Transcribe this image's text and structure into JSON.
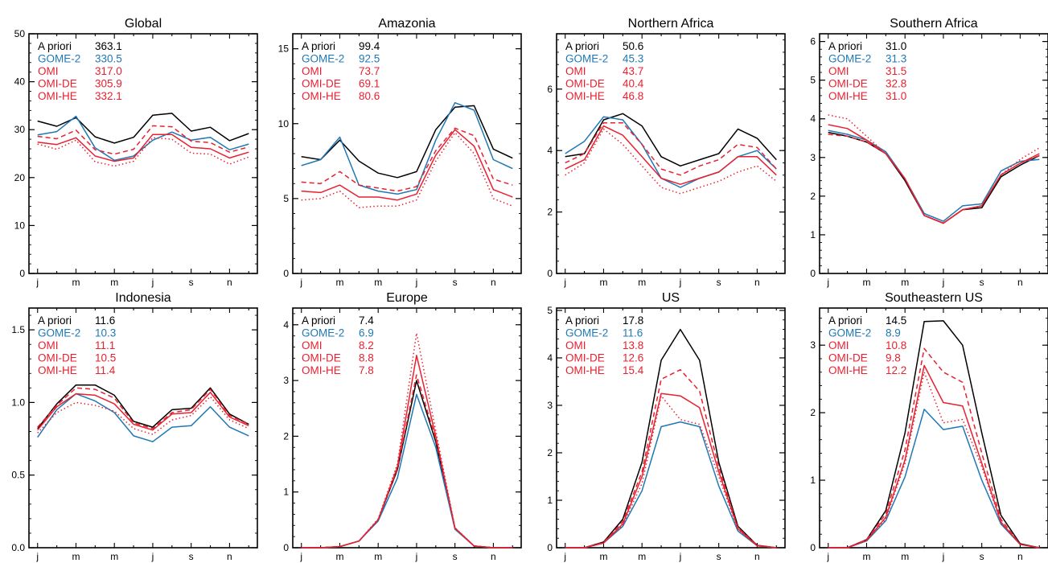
{
  "colors": {
    "a_priori": "#000000",
    "gome2": "#1f78b4",
    "omi": "#e8202f",
    "axis": "#000000"
  },
  "legend_labels": [
    "A priori",
    "GOME-2",
    "OMI",
    "OMI-DE",
    "OMI-HE"
  ],
  "month_ticks": [
    "j",
    "m",
    "m",
    "j",
    "s",
    "n"
  ],
  "chart_data": [
    {
      "type": "line",
      "title": "Global",
      "ylim": [
        0,
        50
      ],
      "yticks": [
        0,
        10,
        20,
        30,
        40,
        50
      ],
      "ytick_labels": [
        "0",
        "10",
        "20",
        "30",
        "40",
        "50"
      ],
      "x": [
        1,
        2,
        3,
        4,
        5,
        6,
        7,
        8,
        9,
        10,
        11,
        12
      ],
      "legend_values": [
        "363.1",
        "330.5",
        "317.0",
        "305.9",
        "332.1"
      ],
      "series": [
        {
          "name": "A priori",
          "style": "solid",
          "color": "#000000",
          "values": [
            31.8,
            30.7,
            32.5,
            28.5,
            27.2,
            28.4,
            33.0,
            33.4,
            29.7,
            30.5,
            27.7,
            29.2
          ]
        },
        {
          "name": "GOME-2",
          "style": "solid",
          "color": "#1f78b4",
          "values": [
            28.9,
            29.6,
            32.8,
            26.2,
            23.6,
            24.5,
            27.8,
            29.5,
            27.8,
            28.4,
            25.8,
            27.0
          ]
        },
        {
          "name": "OMI",
          "style": "solid",
          "color": "#e8202f",
          "values": [
            27.4,
            26.9,
            28.3,
            24.5,
            23.4,
            24.1,
            29.0,
            29.0,
            26.3,
            26.0,
            24.1,
            25.3
          ]
        },
        {
          "name": "OMI-DE",
          "style": "dotted",
          "color": "#e8202f",
          "values": [
            27.0,
            25.9,
            27.8,
            23.3,
            22.4,
            23.4,
            28.3,
            28.0,
            25.1,
            24.9,
            22.8,
            24.3
          ]
        },
        {
          "name": "OMI-HE",
          "style": "dashed",
          "color": "#e8202f",
          "values": [
            28.6,
            28.1,
            29.9,
            25.8,
            24.9,
            25.9,
            30.8,
            30.6,
            27.6,
            27.3,
            25.3,
            26.4
          ]
        }
      ]
    },
    {
      "type": "line",
      "title": "Amazonia",
      "ylim": [
        0,
        16
      ],
      "yticks": [
        0,
        5,
        10,
        15
      ],
      "ytick_labels": [
        "0",
        "5",
        "10",
        "15"
      ],
      "x": [
        1,
        2,
        3,
        4,
        5,
        6,
        7,
        8,
        9,
        10,
        11,
        12
      ],
      "legend_values": [
        "99.4",
        "92.5",
        "73.7",
        "69.1",
        "80.6"
      ],
      "series": [
        {
          "name": "A priori",
          "style": "solid",
          "color": "#000000",
          "values": [
            7.8,
            7.6,
            8.9,
            7.5,
            6.7,
            6.4,
            6.8,
            9.6,
            11.1,
            11.2,
            8.3,
            7.7
          ]
        },
        {
          "name": "GOME-2",
          "style": "solid",
          "color": "#1f78b4",
          "values": [
            7.2,
            7.6,
            9.1,
            5.9,
            5.5,
            5.3,
            5.6,
            8.9,
            11.4,
            10.9,
            7.6,
            7.0
          ]
        },
        {
          "name": "OMI",
          "style": "solid",
          "color": "#e8202f",
          "values": [
            5.5,
            5.4,
            5.9,
            5.1,
            5.1,
            4.9,
            5.3,
            7.9,
            9.6,
            8.5,
            5.6,
            5.1
          ]
        },
        {
          "name": "OMI-DE",
          "style": "dotted",
          "color": "#e8202f",
          "values": [
            4.9,
            5.0,
            5.5,
            4.4,
            4.5,
            4.5,
            4.9,
            7.5,
            9.4,
            8.0,
            5.0,
            4.5
          ]
        },
        {
          "name": "OMI-HE",
          "style": "dashed",
          "color": "#e8202f",
          "values": [
            6.1,
            6.0,
            6.8,
            5.9,
            5.7,
            5.5,
            5.8,
            8.2,
            9.7,
            9.2,
            6.3,
            5.9
          ]
        }
      ]
    },
    {
      "type": "line",
      "title": "Northern Africa",
      "ylim": [
        0,
        7.8
      ],
      "yticks": [
        0,
        2,
        4,
        6
      ],
      "ytick_labels": [
        "0",
        "2",
        "4",
        "6"
      ],
      "x": [
        1,
        2,
        3,
        4,
        5,
        6,
        7,
        8,
        9,
        10,
        11,
        12
      ],
      "legend_values": [
        "50.6",
        "45.3",
        "43.7",
        "40.4",
        "46.8"
      ],
      "series": [
        {
          "name": "A priori",
          "style": "solid",
          "color": "#000000",
          "values": [
            3.8,
            3.9,
            5.0,
            5.2,
            4.8,
            3.8,
            3.5,
            3.7,
            3.9,
            4.7,
            4.4,
            3.7
          ]
        },
        {
          "name": "GOME-2",
          "style": "solid",
          "color": "#1f78b4",
          "values": [
            3.9,
            4.3,
            5.1,
            5.0,
            4.2,
            3.1,
            2.8,
            3.1,
            3.3,
            3.8,
            4.0,
            3.4
          ]
        },
        {
          "name": "OMI",
          "style": "solid",
          "color": "#e8202f",
          "values": [
            3.4,
            3.7,
            4.8,
            4.5,
            3.8,
            3.1,
            2.9,
            3.1,
            3.3,
            3.8,
            3.8,
            3.2
          ]
        },
        {
          "name": "OMI-DE",
          "style": "dotted",
          "color": "#e8202f",
          "values": [
            3.2,
            3.6,
            4.7,
            4.2,
            3.5,
            2.8,
            2.6,
            2.8,
            3.0,
            3.3,
            3.5,
            3.0
          ]
        },
        {
          "name": "OMI-HE",
          "style": "dashed",
          "color": "#e8202f",
          "values": [
            3.6,
            3.9,
            4.9,
            4.9,
            4.2,
            3.4,
            3.2,
            3.5,
            3.7,
            4.2,
            4.1,
            3.4
          ]
        }
      ]
    },
    {
      "type": "line",
      "title": "Southern Africa",
      "ylim": [
        0,
        6.2
      ],
      "yticks": [
        0,
        1,
        2,
        3,
        4,
        5,
        6
      ],
      "ytick_labels": [
        "0",
        "1",
        "2",
        "3",
        "4",
        "5",
        "6"
      ],
      "x": [
        1,
        2,
        3,
        4,
        5,
        6,
        7,
        8,
        9,
        10,
        11,
        12
      ],
      "legend_values": [
        "31.0",
        "31.3",
        "31.5",
        "32.8",
        "31.0"
      ],
      "series": [
        {
          "name": "A priori",
          "style": "solid",
          "color": "#000000",
          "values": [
            3.65,
            3.55,
            3.4,
            3.1,
            2.4,
            1.5,
            1.3,
            1.65,
            1.7,
            2.5,
            2.8,
            3.05
          ]
        },
        {
          "name": "GOME-2",
          "style": "solid",
          "color": "#1f78b4",
          "values": [
            3.7,
            3.6,
            3.45,
            3.15,
            2.45,
            1.55,
            1.35,
            1.75,
            1.8,
            2.65,
            2.9,
            2.95
          ]
        },
        {
          "name": "OMI",
          "style": "solid",
          "color": "#e8202f",
          "values": [
            3.85,
            3.75,
            3.45,
            3.1,
            2.45,
            1.5,
            1.3,
            1.65,
            1.75,
            2.55,
            2.85,
            3.1
          ]
        },
        {
          "name": "OMI-DE",
          "style": "dotted",
          "color": "#e8202f",
          "values": [
            4.1,
            4.0,
            3.55,
            3.1,
            2.45,
            1.5,
            1.3,
            1.65,
            1.75,
            2.55,
            2.95,
            3.25
          ]
        },
        {
          "name": "OMI-HE",
          "style": "dashed",
          "color": "#e8202f",
          "values": [
            3.6,
            3.55,
            3.4,
            3.1,
            2.45,
            1.5,
            1.3,
            1.65,
            1.75,
            2.55,
            2.85,
            3.05
          ]
        }
      ]
    },
    {
      "type": "line",
      "title": "Indonesia",
      "ylim": [
        0,
        1.65
      ],
      "yticks": [
        0,
        0.5,
        1.0,
        1.5
      ],
      "ytick_labels": [
        "0.0",
        "0.5",
        "1.0",
        "1.5"
      ],
      "x": [
        1,
        2,
        3,
        4,
        5,
        6,
        7,
        8,
        9,
        10,
        11,
        12
      ],
      "legend_values": [
        "11.6",
        "10.3",
        "11.1",
        "10.5",
        "11.4"
      ],
      "series": [
        {
          "name": "A priori",
          "style": "solid",
          "color": "#000000",
          "values": [
            0.82,
            0.99,
            1.12,
            1.12,
            1.05,
            0.87,
            0.83,
            0.95,
            0.96,
            1.1,
            0.92,
            0.85
          ]
        },
        {
          "name": "GOME-2",
          "style": "solid",
          "color": "#1f78b4",
          "values": [
            0.76,
            0.95,
            1.06,
            1.01,
            0.93,
            0.77,
            0.73,
            0.83,
            0.84,
            0.97,
            0.83,
            0.77
          ]
        },
        {
          "name": "OMI",
          "style": "solid",
          "color": "#e8202f",
          "values": [
            0.81,
            0.97,
            1.06,
            1.05,
            0.99,
            0.85,
            0.81,
            0.92,
            0.93,
            1.07,
            0.9,
            0.84
          ]
        },
        {
          "name": "OMI-DE",
          "style": "dotted",
          "color": "#e8202f",
          "values": [
            0.79,
            0.93,
            1.0,
            0.98,
            0.94,
            0.82,
            0.78,
            0.88,
            0.91,
            1.04,
            0.88,
            0.82
          ]
        },
        {
          "name": "OMI-HE",
          "style": "dashed",
          "color": "#e8202f",
          "values": [
            0.83,
            0.98,
            1.1,
            1.09,
            1.03,
            0.86,
            0.82,
            0.93,
            0.95,
            1.09,
            0.91,
            0.85
          ]
        }
      ]
    },
    {
      "type": "line",
      "title": "Europe",
      "ylim": [
        0,
        4.3
      ],
      "yticks": [
        0,
        1,
        2,
        3,
        4
      ],
      "ytick_labels": [
        "0",
        "1",
        "2",
        "3",
        "4"
      ],
      "x": [
        1,
        2,
        3,
        4,
        5,
        6,
        7,
        8,
        9,
        10,
        11,
        12
      ],
      "legend_values": [
        "7.4",
        "6.9",
        "8.2",
        "8.8",
        "7.8"
      ],
      "series": [
        {
          "name": "A priori",
          "style": "solid",
          "color": "#000000",
          "values": [
            0,
            0,
            0.02,
            0.12,
            0.5,
            1.4,
            3.0,
            1.9,
            0.35,
            0.03,
            0,
            0
          ]
        },
        {
          "name": "GOME-2",
          "style": "solid",
          "color": "#1f78b4",
          "values": [
            0,
            0,
            0.02,
            0.12,
            0.48,
            1.25,
            2.75,
            1.8,
            0.33,
            0.03,
            0,
            0
          ]
        },
        {
          "name": "OMI",
          "style": "solid",
          "color": "#e8202f",
          "values": [
            0,
            0,
            0.02,
            0.12,
            0.5,
            1.45,
            3.45,
            2.0,
            0.35,
            0.03,
            0,
            0
          ]
        },
        {
          "name": "OMI-DE",
          "style": "dotted",
          "color": "#e8202f",
          "values": [
            0,
            0,
            0.02,
            0.12,
            0.52,
            1.5,
            3.85,
            2.1,
            0.36,
            0.03,
            0,
            0
          ]
        },
        {
          "name": "OMI-HE",
          "style": "dashed",
          "color": "#e8202f",
          "values": [
            0,
            0,
            0.02,
            0.12,
            0.5,
            1.42,
            3.1,
            1.95,
            0.35,
            0.03,
            0,
            0
          ]
        }
      ]
    },
    {
      "type": "line",
      "title": "US",
      "ylim": [
        0,
        5.05
      ],
      "yticks": [
        0,
        1,
        2,
        3,
        4,
        5
      ],
      "ytick_labels": [
        "0",
        "1",
        "2",
        "3",
        "4",
        "5"
      ],
      "x": [
        1,
        2,
        3,
        4,
        5,
        6,
        7,
        8,
        9,
        10,
        11,
        12
      ],
      "legend_values": [
        "17.8",
        "11.6",
        "13.8",
        "12.6",
        "15.4"
      ],
      "series": [
        {
          "name": "A priori",
          "style": "solid",
          "color": "#000000",
          "values": [
            0,
            0,
            0.12,
            0.6,
            1.8,
            3.95,
            4.6,
            3.95,
            1.8,
            0.45,
            0.05,
            0
          ]
        },
        {
          "name": "GOME-2",
          "style": "solid",
          "color": "#1f78b4",
          "values": [
            0,
            0,
            0.1,
            0.45,
            1.2,
            2.55,
            2.65,
            2.55,
            1.3,
            0.35,
            0.04,
            0
          ]
        },
        {
          "name": "OMI",
          "style": "solid",
          "color": "#e8202f",
          "values": [
            0,
            0,
            0.1,
            0.5,
            1.5,
            3.25,
            3.2,
            2.95,
            1.6,
            0.4,
            0.04,
            0
          ]
        },
        {
          "name": "OMI-DE",
          "style": "dotted",
          "color": "#e8202f",
          "values": [
            0,
            0,
            0.1,
            0.48,
            1.35,
            3.2,
            2.7,
            2.6,
            1.5,
            0.38,
            0.04,
            0
          ]
        },
        {
          "name": "OMI-HE",
          "style": "dashed",
          "color": "#e8202f",
          "values": [
            0,
            0,
            0.11,
            0.55,
            1.6,
            3.55,
            3.75,
            3.3,
            1.7,
            0.42,
            0.05,
            0
          ]
        }
      ]
    },
    {
      "type": "line",
      "title": "Southeastern US",
      "ylim": [
        0,
        3.55
      ],
      "yticks": [
        0,
        1,
        2,
        3
      ],
      "ytick_labels": [
        "0",
        "1",
        "2",
        "3"
      ],
      "x": [
        1,
        2,
        3,
        4,
        5,
        6,
        7,
        8,
        9,
        10,
        11,
        12
      ],
      "legend_values": [
        "14.5",
        "8.9",
        "10.8",
        "9.8",
        "12.2"
      ],
      "series": [
        {
          "name": "A priori",
          "style": "solid",
          "color": "#000000",
          "values": [
            0,
            0,
            0.12,
            0.55,
            1.7,
            3.35,
            3.36,
            3.0,
            1.7,
            0.48,
            0.06,
            0
          ]
        },
        {
          "name": "GOME-2",
          "style": "solid",
          "color": "#1f78b4",
          "values": [
            0,
            0,
            0.1,
            0.4,
            1.05,
            2.05,
            1.75,
            1.8,
            1.0,
            0.35,
            0.05,
            0
          ]
        },
        {
          "name": "OMI",
          "style": "solid",
          "color": "#e8202f",
          "values": [
            0,
            0,
            0.11,
            0.45,
            1.3,
            2.7,
            2.15,
            2.1,
            1.25,
            0.38,
            0.05,
            0
          ]
        },
        {
          "name": "OMI-DE",
          "style": "dotted",
          "color": "#e8202f",
          "values": [
            0,
            0,
            0.11,
            0.42,
            1.25,
            2.6,
            1.85,
            1.9,
            1.2,
            0.37,
            0.05,
            0
          ]
        },
        {
          "name": "OMI-HE",
          "style": "dashed",
          "color": "#e8202f",
          "values": [
            0,
            0,
            0.12,
            0.5,
            1.45,
            2.95,
            2.6,
            2.45,
            1.4,
            0.42,
            0.05,
            0
          ]
        }
      ]
    }
  ]
}
